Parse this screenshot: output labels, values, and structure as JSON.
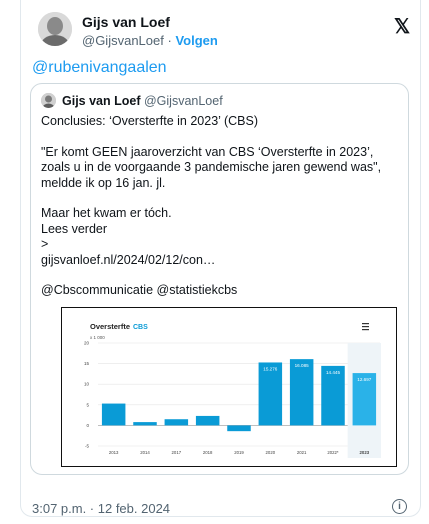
{
  "tweet": {
    "author_name": "Gijs van Loef",
    "author_handle": "@GijsvanLoef",
    "separator": "·",
    "follow_label": "Volgen",
    "reply_to": "@rubenivangaalen",
    "timestamp": "3:07 p.m. · 12 feb. 2024"
  },
  "icons": {
    "platform": "x-logo-icon",
    "info": "info-icon",
    "chart_menu": "hamburger-menu-icon"
  },
  "quote": {
    "author_name": "Gijs van Loef",
    "author_handle": "@GijsvanLoef",
    "lines": [
      "Conclusies: ‘Oversterfte in 2023’ (CBS)",
      "",
      "\"Er komt GEEN jaaroverzicht van CBS ‘Oversterfte in 2023’, zoals u in de voorgaande 3 pandemische jaren gewend was\", meldde ik op 16 jan. jl.",
      "",
      "Maar het kwam er tóch.",
      "Lees verder",
      ">",
      "gijsvanloef.nl/2024/02/12/con…",
      "",
      "@Cbscommunicatie @statistiekcbs"
    ]
  },
  "chart_data": {
    "type": "bar",
    "title": "Oversterfte",
    "source": "CBS",
    "unit": "x 1 000",
    "categories": [
      "2013",
      "2014",
      "2017",
      "2018",
      "2019",
      "2020",
      "2021",
      "2022*",
      "2023"
    ],
    "values": [
      5.3,
      0.8,
      1.5,
      2.3,
      -1.4,
      15.276,
      16.085,
      14.445,
      12.697
    ],
    "labels": [
      "",
      "",
      "",
      "",
      "",
      "15.276",
      "16.085",
      "14.445",
      "12.697"
    ],
    "ylim": [
      -5,
      20
    ],
    "yticks": [
      -5,
      0,
      5,
      10,
      15,
      20
    ],
    "xlabel": "",
    "ylabel": "",
    "grid": true,
    "colors": {
      "bar": "#0a9bd6",
      "bar_highlight": "#2ab2e8",
      "grid": "#e5e5e5"
    }
  }
}
